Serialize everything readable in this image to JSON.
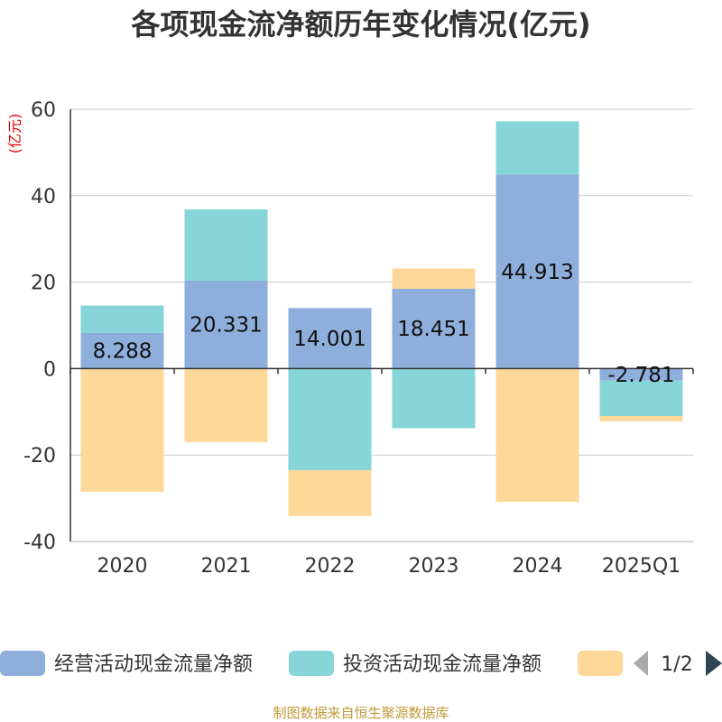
{
  "chart_data": {
    "type": "bar",
    "stacked": true,
    "title": "各项现金流净额历年变化情况(亿元)",
    "ylabel": "(亿元)",
    "ylim": [
      -40,
      60
    ],
    "yticks": [
      -40,
      -20,
      0,
      20,
      40,
      60
    ],
    "grid": true,
    "categories": [
      "2020",
      "2021",
      "2022",
      "2023",
      "2024",
      "2025Q1"
    ],
    "series": [
      {
        "name": "经营活动现金流量净额",
        "color": "#8eaedb",
        "values": [
          8.288,
          20.331,
          14.001,
          18.451,
          44.913,
          -2.781
        ],
        "labels": [
          "8.288",
          "20.331",
          "14.001",
          "18.451",
          "44.913",
          "-2.781"
        ]
      },
      {
        "name": "投资活动现金流量净额",
        "color": "#86d5d8",
        "values": [
          6.3,
          16.5,
          -23.5,
          -13.8,
          12.3,
          -8.2
        ]
      },
      {
        "name": "",
        "color": "#fed898",
        "values": [
          -28.5,
          -17.0,
          -10.6,
          4.7,
          -30.8,
          -1.2
        ]
      }
    ],
    "legend": {
      "position": "bottom",
      "page": "1/2"
    },
    "source": "制图数据来自恒生聚源数据库"
  }
}
